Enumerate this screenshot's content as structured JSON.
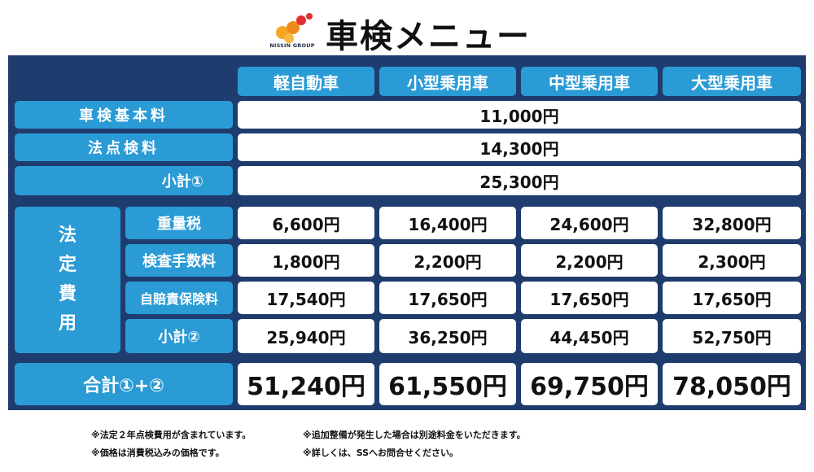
{
  "header": {
    "logo_text": "NISSIN GROUP",
    "title": "車検メニュー"
  },
  "colors": {
    "panel": "#1f3c6e",
    "accent": "#2a9bd5",
    "cell": "#ffffff"
  },
  "columns": [
    "軽自動車",
    "小型乗用車",
    "中型乗用車",
    "大型乗用車"
  ],
  "basic_fee": {
    "label": "車検基本料",
    "value": "11,000円"
  },
  "inspection_fee": {
    "label": "法点検料",
    "value": "14,300円"
  },
  "subtotal1": {
    "label": "小計①",
    "value": "25,300円"
  },
  "legal": {
    "group_chars": [
      "法",
      "定",
      "費",
      "用"
    ],
    "rows": [
      {
        "label": "重量税",
        "values": [
          "6,600円",
          "16,400円",
          "24,600円",
          "32,800円"
        ]
      },
      {
        "label": "検査手数料",
        "values": [
          "1,800円",
          "2,200円",
          "2,200円",
          "2,300円"
        ]
      },
      {
        "label": "自賠責保険料",
        "values": [
          "17,540円",
          "17,650円",
          "17,650円",
          "17,650円"
        ]
      },
      {
        "label": "小計②",
        "values": [
          "25,940円",
          "36,250円",
          "44,450円",
          "52,750円"
        ]
      }
    ]
  },
  "total": {
    "label": "合計①+②",
    "values": [
      "51,240円",
      "61,550円",
      "69,750円",
      "78,050円"
    ]
  },
  "notes": {
    "left": [
      "※法定２年点検費用が含まれています。",
      "※価格は消費税込みの価格です。"
    ],
    "right": [
      "※追加整備が発生した場合は別途料金をいただきます。",
      "※詳しくは、SSへお問合せください。"
    ]
  }
}
